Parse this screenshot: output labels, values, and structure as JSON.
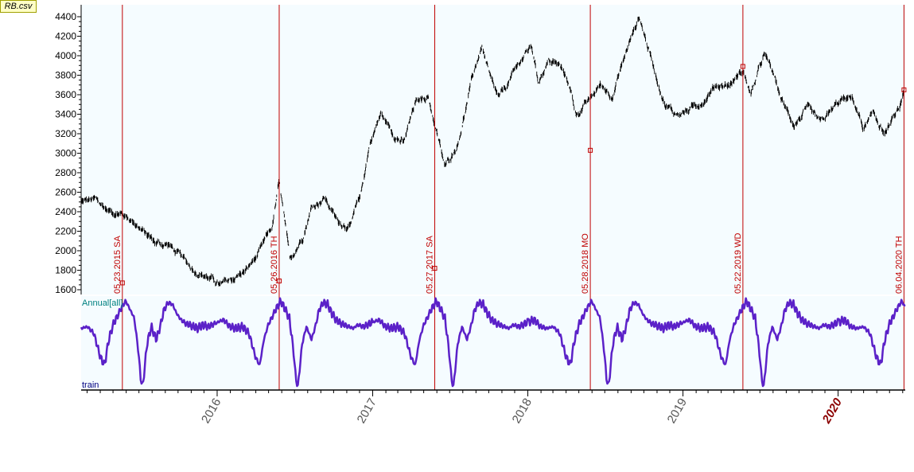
{
  "file_badge": "RB.csv",
  "chart_data": [
    {
      "type": "line",
      "subtype": "ohlc-price",
      "title": "",
      "ylim": [
        1600,
        4450
      ],
      "yticks": [
        "1600",
        "1800",
        "2000",
        "2200",
        "2400",
        "2600",
        "2800",
        "3000",
        "3200",
        "3400",
        "3600",
        "3800",
        "4000",
        "4200",
        "4400"
      ],
      "xlim": [
        "2015-02-15",
        "2020-06-07"
      ],
      "series": [
        {
          "x": [
            "2015-02-15",
            "2015-03-20",
            "2015-04-20",
            "2015-05-20",
            "2015-06-20",
            "2015-07-10",
            "2015-08-10",
            "2015-09-10",
            "2015-10-10",
            "2015-11-10",
            "2015-12-10",
            "2016-01-10",
            "2016-02-10",
            "2016-03-10",
            "2016-04-10",
            "2016-04-28",
            "2016-05-10",
            "2016-05-26",
            "2016-06-20",
            "2016-07-20",
            "2016-08-10",
            "2016-09-10",
            "2016-10-10",
            "2016-11-10",
            "2016-12-05",
            "2016-12-25",
            "2017-01-20",
            "2017-02-20",
            "2017-03-15",
            "2017-04-10",
            "2017-05-10",
            "2017-05-27",
            "2017-06-20",
            "2017-07-20",
            "2017-08-10",
            "2017-08-25",
            "2017-09-15",
            "2017-10-05",
            "2017-10-25",
            "2017-11-20",
            "2017-12-15",
            "2018-01-10",
            "2018-01-25",
            "2018-02-20",
            "2018-03-15",
            "2018-04-05",
            "2018-04-25",
            "2018-05-28",
            "2018-06-20",
            "2018-07-20",
            "2018-08-10",
            "2018-08-25",
            "2018-09-20",
            "2018-10-10",
            "2018-10-30",
            "2018-11-20",
            "2018-12-15",
            "2019-01-20",
            "2019-02-20",
            "2019-03-20",
            "2019-04-20",
            "2019-05-22",
            "2019-06-10",
            "2019-07-10",
            "2019-07-25",
            "2019-08-25",
            "2019-09-20",
            "2019-10-20",
            "2019-11-20",
            "2019-12-20",
            "2020-01-10",
            "2020-02-05",
            "2020-03-01",
            "2020-03-25",
            "2020-04-20",
            "2020-05-10",
            "2020-05-25",
            "2020-06-04"
          ],
          "y": [
            2500,
            2520,
            2410,
            2380,
            2300,
            2200,
            2080,
            2060,
            1920,
            1800,
            1730,
            1640,
            1720,
            1800,
            1980,
            2150,
            2250,
            2700,
            1900,
            2150,
            2450,
            2550,
            2300,
            2250,
            2600,
            3100,
            3400,
            3200,
            3100,
            3500,
            3600,
            3300,
            2850,
            3100,
            3500,
            3800,
            4100,
            3750,
            3550,
            3750,
            3950,
            4100,
            3750,
            3950,
            3900,
            3750,
            3400,
            3550,
            3700,
            3600,
            3900,
            4100,
            4400,
            4100,
            3800,
            3500,
            3400,
            3450,
            3550,
            3700,
            3700,
            3850,
            3600,
            4000,
            3900,
            3500,
            3300,
            3450,
            3300,
            3450,
            3550,
            3550,
            3250,
            3400,
            3200,
            3350,
            3450,
            3650
          ]
        }
      ],
      "vertical_markers": [
        {
          "date": "2015-05-23",
          "label": "05.23.2015 SA",
          "value": 1670
        },
        {
          "date": "2016-05-26",
          "label": "05.26.2016 TH",
          "value": 1690
        },
        {
          "date": "2017-05-27",
          "label": "05.27.2017 SA",
          "value": 1820
        },
        {
          "date": "2018-05-28",
          "label": "05.28.2018 MO",
          "value": 3030
        },
        {
          "date": "2019-05-22",
          "label": "05.22.2019 WD",
          "value": 3890
        },
        {
          "date": "2020-06-04",
          "label": "06.04.2020 TH",
          "value": 3650
        }
      ]
    },
    {
      "type": "line",
      "title": "",
      "panel_label": "Annual[all]",
      "footer_label": "train",
      "color": "#5b21c8",
      "series": [
        {
          "name": "Annual[all]",
          "x_day_of_year": [
            0,
            15,
            30,
            45,
            60,
            75,
            90,
            100,
            110,
            120,
            130,
            140,
            150,
            160,
            170,
            180,
            185,
            190,
            200,
            210,
            222,
            232,
            240,
            250,
            260,
            270,
            280,
            290,
            300,
            310,
            320,
            330,
            345,
            360,
            365
          ],
          "y": [
            0.75,
            0.78,
            0.7,
            0.68,
            0.7,
            0.62,
            0.35,
            0.25,
            0.55,
            0.72,
            0.82,
            0.92,
            1.0,
            0.9,
            0.8,
            0.4,
            0.1,
            0.0,
            0.5,
            0.7,
            0.55,
            0.72,
            0.9,
            0.98,
            0.96,
            0.85,
            0.78,
            0.74,
            0.72,
            0.7,
            0.68,
            0.72,
            0.7,
            0.74,
            0.75
          ]
        }
      ]
    }
  ],
  "x_axis": {
    "labels": [
      {
        "text": "2016",
        "date": "2016-01-01",
        "highlight": false
      },
      {
        "text": "2017",
        "date": "2017-01-01",
        "highlight": false
      },
      {
        "text": "2018",
        "date": "2018-01-01",
        "highlight": false
      },
      {
        "text": "2019",
        "date": "2019-01-01",
        "highlight": false
      },
      {
        "text": "2020",
        "date": "2020-01-01",
        "highlight": true
      }
    ]
  },
  "colors": {
    "plot_bg": "#f5fcff",
    "price": "#000000",
    "marker": "#c00000",
    "annual": "#5b21c8"
  }
}
